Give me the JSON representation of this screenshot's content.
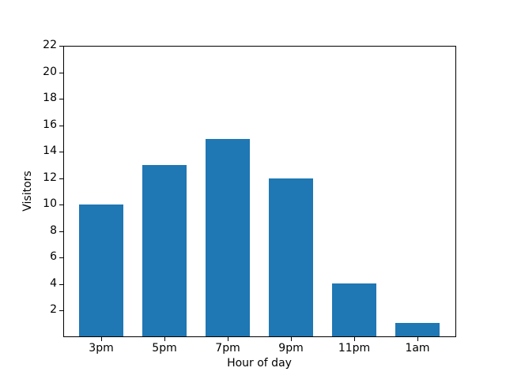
{
  "chart_data": {
    "type": "bar",
    "categories": [
      "3pm",
      "5pm",
      "7pm",
      "9pm",
      "11pm",
      "1am"
    ],
    "values": [
      10,
      13,
      15,
      12,
      4,
      1
    ],
    "title": "",
    "xlabel": "Hour of day",
    "ylabel": "Visitors",
    "ylim": [
      0,
      22
    ],
    "yticks": [
      2,
      4,
      6,
      8,
      10,
      12,
      14,
      16,
      18,
      20,
      22
    ],
    "bar_color": "#1f77b4",
    "axis_color": "#000000",
    "background_color": "#ffffff",
    "grid": false,
    "legend": null
  }
}
